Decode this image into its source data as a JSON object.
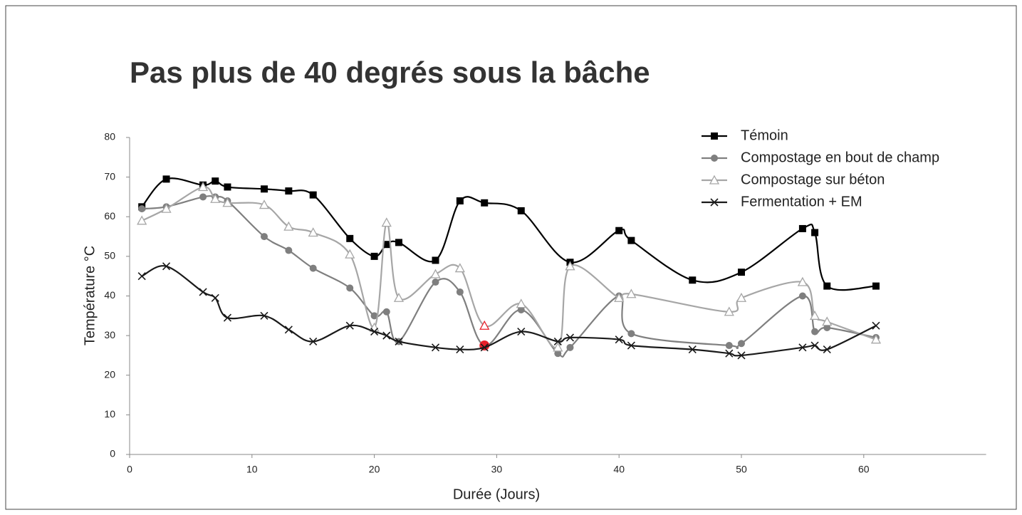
{
  "chart_data": {
    "type": "line",
    "title": "Pas plus de 40 degrés sous la bâche",
    "x_label": "Durée (Jours)",
    "y_label": "Température °C",
    "xlim": [
      0,
      70
    ],
    "xticks": [
      0,
      10,
      20,
      30,
      40,
      50,
      60
    ],
    "ylim": [
      0,
      80
    ],
    "yticks": [
      0,
      10,
      20,
      30,
      40,
      50,
      60,
      70,
      80
    ],
    "legend": "top-right",
    "highlight_x": 29,
    "highlight_color": "#e8202a",
    "series": [
      {
        "name": "Témoin",
        "color": "#000000",
        "marker": "square",
        "x": [
          1,
          3,
          6,
          7,
          8,
          11,
          13,
          15,
          18,
          20,
          21,
          22,
          25,
          27,
          29,
          32,
          36,
          40,
          41,
          46,
          50,
          55,
          56,
          57,
          61
        ],
        "values": [
          62.5,
          69.5,
          68,
          69,
          67.5,
          67,
          66.5,
          65.5,
          54.5,
          50,
          53,
          53.5,
          49,
          64,
          63.5,
          61.5,
          48.5,
          56.5,
          54,
          44,
          46,
          57,
          56,
          42.5,
          42.5
        ]
      },
      {
        "name": "Compostage en bout de champ",
        "color": "#7f7f7f",
        "marker": "circle",
        "x": [
          1,
          3,
          6,
          7,
          8,
          11,
          13,
          15,
          18,
          20,
          21,
          22,
          25,
          27,
          29,
          32,
          35,
          36,
          40,
          41,
          49,
          50,
          55,
          56,
          57,
          61
        ],
        "values": [
          62,
          62.5,
          65,
          65,
          64,
          55,
          51.5,
          47,
          42,
          35,
          36,
          28.5,
          43.5,
          41,
          27.5,
          36.5,
          25.5,
          27,
          40,
          30.5,
          27.5,
          28,
          40,
          31,
          32,
          29.5
        ]
      },
      {
        "name": "Compostage sur béton",
        "color": "#a6a6a6",
        "marker": "triangle",
        "x": [
          1,
          3,
          6,
          7,
          8,
          11,
          13,
          15,
          18,
          20,
          21,
          22,
          25,
          27,
          29,
          32,
          35,
          36,
          40,
          41,
          49,
          50,
          55,
          56,
          57,
          61
        ],
        "values": [
          59,
          62,
          67.5,
          64.5,
          63.5,
          63,
          57.5,
          56,
          50.5,
          32,
          58.5,
          39.5,
          45.5,
          47,
          32.5,
          38,
          27,
          47.5,
          39.5,
          40.5,
          36,
          39.5,
          43.5,
          35,
          33.5,
          29
        ]
      },
      {
        "name": "Fermentation + EM",
        "color": "#1a1a1a",
        "marker": "cross",
        "x": [
          1,
          3,
          6,
          7,
          8,
          11,
          13,
          15,
          18,
          20,
          21,
          22,
          25,
          27,
          29,
          32,
          35,
          36,
          40,
          41,
          46,
          49,
          50,
          55,
          56,
          57,
          61
        ],
        "values": [
          45,
          47.5,
          41,
          39.5,
          34.5,
          35,
          31.5,
          28.5,
          32.5,
          31,
          30,
          28.5,
          27,
          26.5,
          27,
          31,
          28.5,
          29.5,
          29,
          27.5,
          26.5,
          25.5,
          25,
          27,
          27.5,
          26.5,
          32.5
        ]
      }
    ]
  }
}
